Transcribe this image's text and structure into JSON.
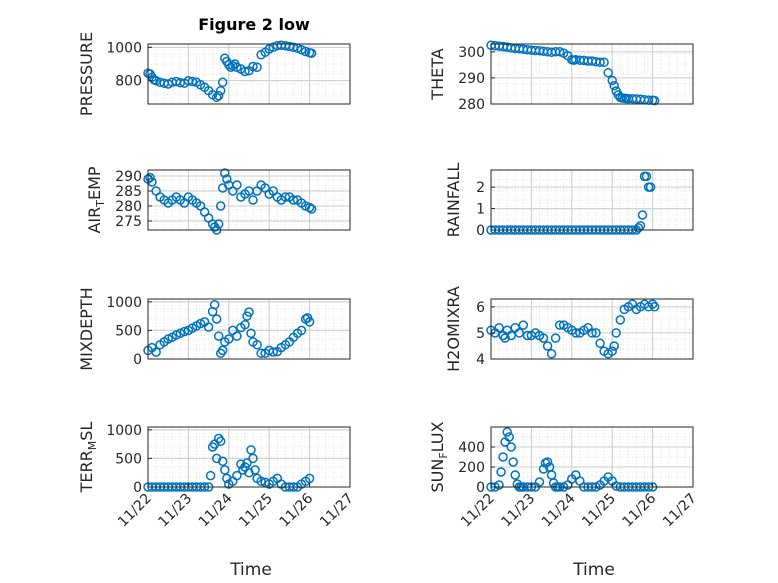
{
  "figure": {
    "title": "Figure 2 low",
    "xlabel_left": "Time",
    "xlabel_right": "Time",
    "marker_color": "#0072BD",
    "grid_color": "#cccccc"
  },
  "chart_data": [
    {
      "type": "scatter",
      "ylabel": "PRESSURE",
      "ylim": [
        660,
        1020
      ],
      "yticks": [
        800,
        1000
      ],
      "xlim": [
        "11/22",
        "11/27"
      ],
      "xticks": [],
      "grid": true,
      "x": [
        0.0,
        0.05,
        0.1,
        0.15,
        0.2,
        0.3,
        0.4,
        0.5,
        0.6,
        0.7,
        0.8,
        0.9,
        1.0,
        1.1,
        1.2,
        1.3,
        1.4,
        1.5,
        1.6,
        1.7,
        1.75,
        1.8,
        1.85,
        1.9,
        1.95,
        2.0,
        2.05,
        2.1,
        2.15,
        2.2,
        2.3,
        2.4,
        2.5,
        2.6,
        2.7,
        2.8,
        2.9,
        3.0,
        3.1,
        3.2,
        3.3,
        3.4,
        3.5,
        3.6,
        3.7,
        3.8,
        3.9,
        4.0,
        4.05
      ],
      "y": [
        845,
        840,
        820,
        805,
        800,
        790,
        785,
        780,
        790,
        795,
        788,
        785,
        800,
        795,
        790,
        775,
        760,
        740,
        715,
        700,
        710,
        740,
        790,
        935,
        915,
        895,
        880,
        890,
        900,
        880,
        870,
        855,
        860,
        885,
        880,
        955,
        970,
        990,
        1000,
        1010,
        1012,
        1010,
        1005,
        1000,
        995,
        985,
        975,
        968,
        965
      ]
    },
    {
      "type": "scatter",
      "ylabel": "THETA",
      "ylim": [
        280,
        303
      ],
      "yticks": [
        280,
        290,
        300
      ],
      "xlim": [
        "11/22",
        "11/27"
      ],
      "xticks": [],
      "grid": true,
      "x": [
        0.0,
        0.1,
        0.2,
        0.3,
        0.4,
        0.5,
        0.6,
        0.7,
        0.8,
        0.9,
        1.0,
        1.1,
        1.2,
        1.3,
        1.4,
        1.5,
        1.6,
        1.7,
        1.8,
        1.9,
        2.0,
        2.05,
        2.1,
        2.2,
        2.3,
        2.4,
        2.5,
        2.6,
        2.7,
        2.8,
        2.9,
        3.0,
        3.05,
        3.1,
        3.15,
        3.2,
        3.25,
        3.3,
        3.35,
        3.4,
        3.5,
        3.6,
        3.7,
        3.8,
        3.9,
        4.0,
        4.05
      ],
      "y": [
        302.5,
        302.3,
        302.2,
        302.0,
        301.8,
        301.5,
        301.3,
        301.2,
        301.0,
        300.8,
        300.6,
        300.5,
        300.4,
        300.2,
        300.0,
        299.8,
        300.0,
        300.0,
        299.5,
        298.5,
        297.0,
        296.8,
        297.0,
        296.8,
        296.7,
        296.5,
        296.5,
        296.2,
        296.0,
        296.0,
        292.0,
        289.0,
        287.0,
        285.0,
        283.5,
        282.5,
        282.3,
        282.2,
        282.1,
        282.0,
        282.0,
        281.9,
        281.8,
        281.6,
        281.5,
        281.4,
        281.3
      ]
    },
    {
      "type": "scatter",
      "ylabel": "AIR_TEMP",
      "ylim": [
        272,
        292
      ],
      "yticks": [
        275,
        280,
        285,
        290
      ],
      "xlim": [
        "11/22",
        "11/27"
      ],
      "xticks": [],
      "grid": true,
      "x": [
        0.0,
        0.05,
        0.1,
        0.2,
        0.3,
        0.4,
        0.5,
        0.6,
        0.7,
        0.8,
        0.9,
        1.0,
        1.1,
        1.2,
        1.3,
        1.4,
        1.5,
        1.6,
        1.65,
        1.7,
        1.75,
        1.8,
        1.85,
        1.9,
        1.95,
        2.0,
        2.1,
        2.2,
        2.3,
        2.4,
        2.5,
        2.6,
        2.7,
        2.8,
        2.9,
        3.0,
        3.1,
        3.2,
        3.3,
        3.4,
        3.5,
        3.6,
        3.7,
        3.8,
        3.9,
        4.0,
        4.05
      ],
      "y": [
        289,
        289.5,
        288,
        285,
        283,
        282,
        281,
        282,
        283,
        282,
        281,
        283,
        282,
        281,
        280,
        278,
        276,
        274,
        273,
        272,
        274,
        280,
        286,
        291,
        289,
        287,
        285,
        287,
        283,
        284,
        285,
        282,
        285,
        287,
        286,
        284,
        285,
        283,
        282,
        283,
        283,
        282,
        282,
        281,
        280,
        279.5,
        279
      ],
      "tick_label_y": []
    },
    {
      "type": "scatter",
      "ylabel": "RAINFALL",
      "ylim": [
        0,
        2.8
      ],
      "yticks": [
        0,
        1,
        2
      ],
      "xlim": [
        "11/22",
        "11/27"
      ],
      "xticks": [],
      "grid": true,
      "x": [
        0.0,
        0.1,
        0.2,
        0.3,
        0.4,
        0.5,
        0.6,
        0.7,
        0.8,
        0.9,
        1.0,
        1.1,
        1.2,
        1.3,
        1.4,
        1.5,
        1.6,
        1.7,
        1.8,
        1.9,
        2.0,
        2.1,
        2.2,
        2.3,
        2.4,
        2.5,
        2.6,
        2.7,
        2.8,
        2.9,
        3.0,
        3.1,
        3.2,
        3.3,
        3.4,
        3.5,
        3.6,
        3.65,
        3.7,
        3.75,
        3.8,
        3.85,
        3.9,
        3.95
      ],
      "y": [
        0,
        0,
        0,
        0,
        0,
        0,
        0,
        0,
        0,
        0,
        0,
        0,
        0,
        0,
        0,
        0,
        0,
        0,
        0,
        0,
        0,
        0,
        0,
        0,
        0,
        0,
        0,
        0,
        0,
        0,
        0,
        0,
        0,
        0,
        0,
        0,
        0,
        0.1,
        0.2,
        0.7,
        2.5,
        2.5,
        2.0,
        2.0
      ]
    },
    {
      "type": "scatter",
      "ylabel": "MIXDEPTH",
      "ylim": [
        0,
        1050
      ],
      "yticks": [
        0,
        500,
        1000
      ],
      "xlim": [
        "11/22",
        "11/27"
      ],
      "xticks": [],
      "grid": true,
      "x": [
        0.0,
        0.1,
        0.2,
        0.3,
        0.4,
        0.5,
        0.6,
        0.7,
        0.8,
        0.9,
        1.0,
        1.1,
        1.2,
        1.3,
        1.4,
        1.5,
        1.6,
        1.65,
        1.7,
        1.75,
        1.8,
        1.85,
        1.9,
        2.0,
        2.1,
        2.2,
        2.3,
        2.4,
        2.45,
        2.5,
        2.55,
        2.6,
        2.7,
        2.8,
        2.9,
        3.0,
        3.1,
        3.2,
        3.3,
        3.4,
        3.5,
        3.6,
        3.7,
        3.8,
        3.9,
        3.95,
        4.0
      ],
      "y": [
        150,
        200,
        120,
        250,
        300,
        350,
        380,
        420,
        450,
        480,
        500,
        540,
        580,
        620,
        650,
        560,
        830,
        950,
        700,
        400,
        100,
        150,
        300,
        350,
        500,
        400,
        550,
        600,
        750,
        820,
        450,
        300,
        250,
        100,
        100,
        150,
        120,
        130,
        200,
        250,
        300,
        380,
        450,
        500,
        700,
        720,
        650
      ]
    },
    {
      "type": "scatter",
      "ylabel": "H2OMIXRA",
      "ylim": [
        4,
        6.3
      ],
      "yticks": [
        4,
        5,
        6
      ],
      "xlim": [
        "11/22",
        "11/27"
      ],
      "xticks": [],
      "grid": true,
      "x": [
        0.0,
        0.1,
        0.2,
        0.3,
        0.35,
        0.4,
        0.5,
        0.6,
        0.7,
        0.8,
        0.9,
        1.0,
        1.1,
        1.2,
        1.3,
        1.4,
        1.5,
        1.6,
        1.7,
        1.8,
        1.9,
        2.0,
        2.1,
        2.2,
        2.3,
        2.4,
        2.5,
        2.6,
        2.7,
        2.8,
        2.9,
        3.0,
        3.05,
        3.1,
        3.2,
        3.3,
        3.4,
        3.5,
        3.6,
        3.7,
        3.8,
        3.9,
        4.0,
        4.05
      ],
      "y": [
        5.1,
        5.0,
        5.2,
        4.9,
        4.8,
        5.1,
        4.9,
        5.2,
        5.0,
        5.3,
        4.9,
        4.9,
        5.0,
        4.9,
        4.8,
        4.5,
        4.2,
        4.8,
        5.3,
        5.3,
        5.2,
        5.1,
        5.0,
        5.0,
        5.1,
        5.2,
        5.0,
        5.0,
        4.6,
        4.3,
        4.2,
        4.3,
        4.5,
        5.0,
        5.5,
        5.9,
        6.0,
        6.1,
        5.9,
        6.0,
        6.1,
        6.0,
        6.1,
        6.0
      ]
    },
    {
      "type": "scatter",
      "ylabel": "TERR_MSL",
      "ylim": [
        0,
        1050
      ],
      "yticks": [
        0,
        500,
        1000
      ],
      "xlim": [
        "11/22",
        "11/27"
      ],
      "xticks": [
        "11/22",
        "11/23",
        "11/24",
        "11/25",
        "11/26",
        "11/27"
      ],
      "grid": true,
      "x": [
        0.0,
        0.1,
        0.2,
        0.3,
        0.4,
        0.5,
        0.6,
        0.7,
        0.8,
        0.9,
        1.0,
        1.1,
        1.2,
        1.3,
        1.4,
        1.5,
        1.55,
        1.6,
        1.65,
        1.7,
        1.75,
        1.8,
        1.85,
        1.9,
        1.95,
        2.0,
        2.1,
        2.2,
        2.3,
        2.35,
        2.4,
        2.45,
        2.5,
        2.55,
        2.6,
        2.65,
        2.7,
        2.8,
        2.9,
        3.0,
        3.1,
        3.2,
        3.3,
        3.4,
        3.5,
        3.6,
        3.7,
        3.8,
        3.9,
        4.0
      ],
      "y": [
        0,
        0,
        0,
        0,
        0,
        0,
        0,
        0,
        0,
        0,
        0,
        0,
        0,
        0,
        0,
        0,
        200,
        700,
        750,
        500,
        850,
        800,
        450,
        300,
        150,
        50,
        100,
        200,
        400,
        300,
        350,
        420,
        250,
        650,
        500,
        300,
        150,
        100,
        80,
        50,
        100,
        150,
        50,
        0,
        0,
        0,
        0,
        50,
        100,
        150
      ]
    },
    {
      "type": "scatter",
      "ylabel": "SUN_FLUX",
      "ylim": [
        0,
        600
      ],
      "yticks": [
        0,
        200,
        400
      ],
      "xlim": [
        "11/22",
        "11/27"
      ],
      "xticks": [
        "11/22",
        "11/23",
        "11/24",
        "11/25",
        "11/26",
        "11/27"
      ],
      "grid": true,
      "x": [
        0.0,
        0.1,
        0.2,
        0.25,
        0.3,
        0.35,
        0.4,
        0.45,
        0.5,
        0.55,
        0.6,
        0.65,
        0.7,
        0.75,
        0.8,
        0.9,
        1.0,
        1.1,
        1.2,
        1.3,
        1.35,
        1.4,
        1.45,
        1.5,
        1.55,
        1.6,
        1.65,
        1.7,
        1.8,
        1.9,
        2.0,
        2.1,
        2.2,
        2.3,
        2.4,
        2.5,
        2.6,
        2.7,
        2.8,
        2.9,
        3.0,
        3.1,
        3.2,
        3.3,
        3.4,
        3.5,
        3.6,
        3.7,
        3.8,
        3.9,
        4.0
      ],
      "y": [
        0,
        0,
        20,
        150,
        300,
        450,
        550,
        500,
        400,
        250,
        120,
        30,
        0,
        0,
        0,
        0,
        0,
        0,
        50,
        180,
        240,
        250,
        200,
        120,
        40,
        0,
        0,
        0,
        0,
        20,
        80,
        120,
        60,
        0,
        0,
        0,
        0,
        20,
        60,
        100,
        60,
        10,
        0,
        0,
        0,
        0,
        0,
        0,
        0,
        0,
        0
      ]
    }
  ]
}
